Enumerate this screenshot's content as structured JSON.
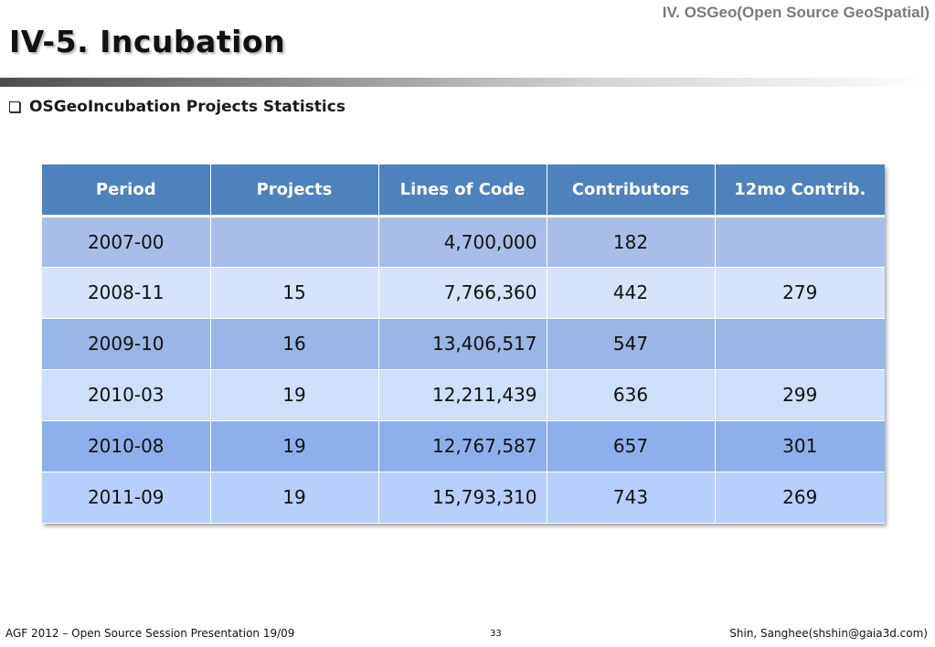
{
  "header": {
    "section": "IV. OSGeo(Open Source GeoSpatial)",
    "title": "IV-5. Incubation"
  },
  "bullet": {
    "icon": "checkbox-bullet-icon",
    "text": "OSGeoIncubation Projects Statistics"
  },
  "table": {
    "columns": [
      "Period",
      "Projects",
      "Lines of Code",
      "Contributors",
      "12mo Contrib."
    ],
    "rows": [
      [
        "2007-00",
        "",
        "4,700,000",
        "182",
        ""
      ],
      [
        "2008-11",
        "15",
        "7,766,360",
        "442",
        "279"
      ],
      [
        "2009-10",
        "16",
        "13,406,517",
        "547",
        ""
      ],
      [
        "2010-03",
        "19",
        "12,211,439",
        "636",
        "299"
      ],
      [
        "2010-08",
        "19",
        "12,767,587",
        "657",
        "301"
      ],
      [
        "2011-09",
        "19",
        "15,793,310",
        "743",
        "269"
      ]
    ]
  },
  "footer": {
    "left": "AGF 2012 – Open Source Session Presentation 19/09",
    "page": "33",
    "right": "Shin, Sanghee(shshin@gaia3d.com)"
  },
  "colors": {
    "header_fill": "#4f81bd",
    "header_text": "#ffffff",
    "row_fills": [
      "#a7bfe8",
      "#d6e3fb",
      "#98b6e6",
      "#cfdefa",
      "#8eb0ea",
      "#b6cffb"
    ]
  }
}
